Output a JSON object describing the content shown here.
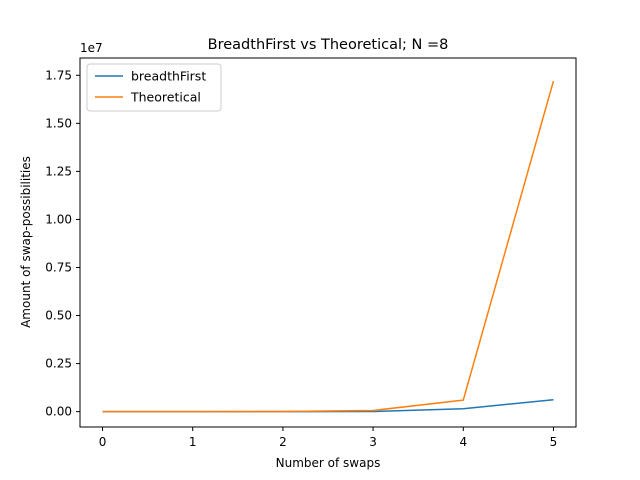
{
  "chart_data": {
    "type": "line",
    "title": "BreadthFirst vs Theoretical; N =8",
    "xlabel": "Number of swaps",
    "ylabel": "Amount of swap-possibilities",
    "y_offset_label": "1e7",
    "x": [
      0,
      1,
      2,
      3,
      4,
      5
    ],
    "xlim": [
      -0.25,
      5.25
    ],
    "ylim": [
      -800000,
      18400000
    ],
    "x_ticks": [
      0,
      1,
      2,
      3,
      4,
      5
    ],
    "x_tick_labels": [
      "0",
      "1",
      "2",
      "3",
      "4",
      "5"
    ],
    "y_ticks": [
      0,
      2500000,
      5000000,
      7500000,
      10000000,
      12500000,
      15000000,
      17500000
    ],
    "y_tick_labels": [
      "0.00",
      "0.25",
      "0.50",
      "0.75",
      "1.00",
      "1.25",
      "1.50",
      "1.75"
    ],
    "grid": false,
    "legend_position": "upper-left",
    "series": [
      {
        "name": "breadthFirst",
        "color": "#1f77b4",
        "values": [
          1,
          28,
          420,
          4200,
          150000,
          620000
        ]
      },
      {
        "name": "Theoretical",
        "color": "#ff7f0e",
        "values": [
          1,
          784,
          9800,
          60000,
          600000,
          17200000
        ]
      }
    ]
  }
}
